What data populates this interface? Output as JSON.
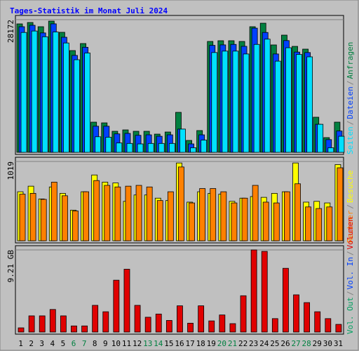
{
  "chart_data": [
    {
      "type": "bar",
      "title": "Tages-Statistik im Monat Juli 2024",
      "categories": [
        "1",
        "2",
        "3",
        "4",
        "5",
        "6",
        "7",
        "8",
        "9",
        "10",
        "11",
        "12",
        "13",
        "14",
        "15",
        "16",
        "17",
        "18",
        "19",
        "20",
        "21",
        "22",
        "23",
        "24",
        "25",
        "26",
        "27",
        "28",
        "29",
        "30",
        "31"
      ],
      "category_colors": [
        "#000000",
        "#000000",
        "#000000",
        "#000000",
        "#000000",
        "#008040",
        "#008040",
        "#000000",
        "#000000",
        "#000000",
        "#000000",
        "#000000",
        "#008040",
        "#008040",
        "#000000",
        "#000000",
        "#000000",
        "#000000",
        "#000000",
        "#008040",
        "#008040",
        "#000000",
        "#000000",
        "#000000",
        "#000000",
        "#000000",
        "#008040",
        "#008040",
        "#000000",
        "#000000",
        "#000000"
      ],
      "legend_separator": "/",
      "ylim": [
        0,
        28172
      ],
      "yticks": [
        28172
      ],
      "series": [
        {
          "name": "Anfragen",
          "color": "#008040",
          "values": [
            27290,
            27580,
            26700,
            27870,
            25530,
            21710,
            23180,
            6750,
            6600,
            4840,
            5130,
            4840,
            4840,
            4250,
            4690,
            8800,
            2930,
            4990,
            23620,
            23770,
            23770,
            23620,
            26700,
            27430,
            22890,
            24940,
            22590,
            22010,
            7780,
            3520,
            6750
          ]
        },
        {
          "name": "Dateien",
          "color": "#0040ff",
          "values": [
            26700,
            27000,
            25400,
            27300,
            24500,
            20700,
            22400,
            5900,
            5900,
            4300,
            4400,
            4000,
            4100,
            3800,
            4100,
            5300,
            2200,
            4100,
            22800,
            22900,
            23000,
            22600,
            26400,
            25500,
            21000,
            23800,
            21400,
            21300,
            6300,
            3100,
            4900
          ]
        },
        {
          "name": "Seiten",
          "color": "#00e0ff",
          "values": [
            25500,
            25800,
            24600,
            25600,
            23300,
            19800,
            21200,
            3700,
            3600,
            2400,
            2300,
            2200,
            2300,
            2300,
            2300,
            5300,
            1400,
            3000,
            21300,
            21600,
            21600,
            21000,
            23000,
            24100,
            19500,
            22300,
            20900,
            20400,
            6300,
            1400,
            3800
          ]
        }
      ]
    },
    {
      "type": "bar",
      "ylim": [
        0,
        1019
      ],
      "yticks": [
        1019
      ],
      "series": [
        {
          "name": "Besuche",
          "color": "#ffff00",
          "values": [
            640,
            710,
            550,
            700,
            620,
            410,
            640,
            850,
            760,
            750,
            520,
            600,
            600,
            560,
            530,
            1000,
            510,
            640,
            620,
            610,
            520,
            560,
            580,
            570,
            620,
            640,
            1000,
            510,
            520,
            500,
            980
          ]
        },
        {
          "name": "Rechner",
          "color": "#ff8000",
          "values": [
            610,
            620,
            545,
            760,
            590,
            400,
            640,
            780,
            720,
            700,
            710,
            720,
            700,
            530,
            640,
            950,
            500,
            680,
            680,
            640,
            500,
            560,
            720,
            510,
            500,
            640,
            740,
            450,
            430,
            450,
            940
          ]
        }
      ]
    },
    {
      "type": "bar",
      "ylim": [
        0,
        9.21
      ],
      "yticks": [
        {
          "value": 9.21,
          "label": "9.21 GB"
        }
      ],
      "series": [
        {
          "name": "Volumen",
          "color": "#e00000",
          "values": [
            0.69,
            2.0,
            2.0,
            2.7,
            2.0,
            0.9,
            0.9,
            3.15,
            2.45,
            5.9,
            7.1,
            3.15,
            1.85,
            2.2,
            1.5,
            3.1,
            1.2,
            3.1,
            1.45,
            2.1,
            1.15,
            4.2,
            9.21,
            9.05,
            1.7,
            7.2,
            4.3,
            3.45,
            2.45,
            1.7,
            1.07
          ]
        }
      ],
      "extra_legend": [
        {
          "name": "Vol. In",
          "color": "#0040ff"
        },
        {
          "name": "Vol. Out",
          "color": "#00a060"
        }
      ]
    }
  ]
}
